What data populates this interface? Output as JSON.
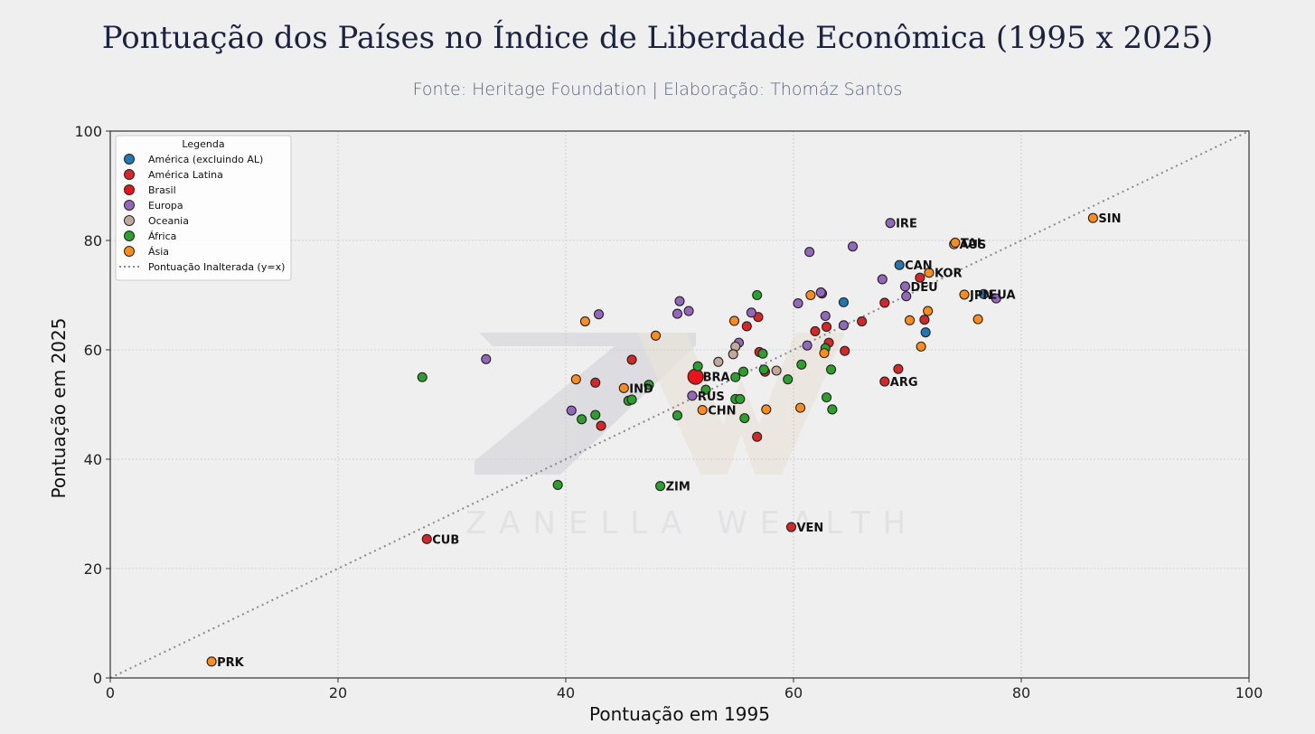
{
  "header": {
    "title": "Pontuação dos Países no Índice de Liberdade Econômica (1995 x 2025)",
    "subtitle": "Fonte: Heritage Foundation | Elaboração: Thomáz Santos"
  },
  "watermark": {
    "monogram": "ZW",
    "text": "ZANELLA WEALTH"
  },
  "chart_data": {
    "type": "scatter",
    "xlabel": "Pontuação em 1995",
    "ylabel": "Pontuação em 2025",
    "xlim": [
      0,
      100
    ],
    "ylim": [
      0,
      100
    ],
    "xticks": [
      0,
      20,
      40,
      60,
      80,
      100
    ],
    "yticks": [
      0,
      20,
      40,
      60,
      80,
      100
    ],
    "grid": true,
    "legend": {
      "title": "Legenda",
      "placement": "top-left",
      "line_label": "Pontuação Inalterada (y=x)"
    },
    "reference_line": {
      "type": "y=x",
      "color": "#888888",
      "style": "dotted"
    },
    "series": [
      {
        "name": "América (excluindo AL)",
        "color": "#1f77b4",
        "points": [
          {
            "x": 69.3,
            "y": 75.5,
            "label": "CAN"
          },
          {
            "x": 76.7,
            "y": 70.2,
            "label": "EUA"
          },
          {
            "x": 64.4,
            "y": 68.7
          },
          {
            "x": 71.6,
            "y": 63.2
          }
        ]
      },
      {
        "name": "América Latina",
        "color": "#d62728",
        "points": [
          {
            "x": 27.8,
            "y": 25.4,
            "label": "CUB"
          },
          {
            "x": 59.8,
            "y": 27.6,
            "label": "VEN"
          },
          {
            "x": 68.0,
            "y": 54.2,
            "label": "ARG"
          },
          {
            "x": 45.8,
            "y": 58.2
          },
          {
            "x": 42.6,
            "y": 54.0
          },
          {
            "x": 43.1,
            "y": 46.1
          },
          {
            "x": 56.8,
            "y": 44.1
          },
          {
            "x": 55.9,
            "y": 64.3
          },
          {
            "x": 56.9,
            "y": 66.0
          },
          {
            "x": 57.0,
            "y": 59.6
          },
          {
            "x": 61.9,
            "y": 63.4
          },
          {
            "x": 62.9,
            "y": 64.2
          },
          {
            "x": 63.1,
            "y": 61.3
          },
          {
            "x": 64.5,
            "y": 59.8
          },
          {
            "x": 66.0,
            "y": 65.2
          },
          {
            "x": 68.0,
            "y": 68.6
          },
          {
            "x": 69.2,
            "y": 56.5
          },
          {
            "x": 71.1,
            "y": 73.2
          },
          {
            "x": 71.5,
            "y": 65.5
          },
          {
            "x": 62.5,
            "y": 70.3
          },
          {
            "x": 57.5,
            "y": 56.0
          }
        ]
      },
      {
        "name": "Brasil",
        "color": "#e8141a",
        "points": [
          {
            "x": 51.4,
            "y": 55.1,
            "label": "BRA",
            "highlight": true
          }
        ]
      },
      {
        "name": "Europa",
        "color": "#9467bd",
        "points": [
          {
            "x": 68.5,
            "y": 83.2,
            "label": "IRE"
          },
          {
            "x": 69.8,
            "y": 71.6,
            "label": "DEU"
          },
          {
            "x": 51.1,
            "y": 51.6,
            "label": "RUS"
          },
          {
            "x": 33.0,
            "y": 58.3
          },
          {
            "x": 40.5,
            "y": 48.9
          },
          {
            "x": 42.9,
            "y": 66.5
          },
          {
            "x": 49.8,
            "y": 66.6
          },
          {
            "x": 50.0,
            "y": 68.9
          },
          {
            "x": 50.8,
            "y": 67.1
          },
          {
            "x": 55.2,
            "y": 61.3
          },
          {
            "x": 56.3,
            "y": 66.8
          },
          {
            "x": 61.2,
            "y": 60.8
          },
          {
            "x": 61.4,
            "y": 77.9
          },
          {
            "x": 62.4,
            "y": 70.5
          },
          {
            "x": 62.8,
            "y": 66.2
          },
          {
            "x": 64.4,
            "y": 64.5
          },
          {
            "x": 65.2,
            "y": 78.9
          },
          {
            "x": 67.8,
            "y": 72.9
          },
          {
            "x": 69.9,
            "y": 69.8
          },
          {
            "x": 60.4,
            "y": 68.5
          },
          {
            "x": 77.8,
            "y": 69.4
          }
        ]
      },
      {
        "name": "Oceania",
        "color": "#c4a99b",
        "points": [
          {
            "x": 74.1,
            "y": 79.3,
            "label": "AUS"
          },
          {
            "x": 53.4,
            "y": 57.8
          },
          {
            "x": 54.9,
            "y": 60.6
          },
          {
            "x": 54.7,
            "y": 59.2
          },
          {
            "x": 58.5,
            "y": 56.2
          }
        ]
      },
      {
        "name": "África",
        "color": "#2ca02c",
        "points": [
          {
            "x": 48.3,
            "y": 35.1,
            "label": "ZIM"
          },
          {
            "x": 27.4,
            "y": 55.0
          },
          {
            "x": 39.3,
            "y": 35.3
          },
          {
            "x": 41.4,
            "y": 47.3
          },
          {
            "x": 42.6,
            "y": 48.1
          },
          {
            "x": 45.5,
            "y": 50.7
          },
          {
            "x": 45.8,
            "y": 50.9
          },
          {
            "x": 47.3,
            "y": 53.6
          },
          {
            "x": 49.8,
            "y": 48.0
          },
          {
            "x": 51.6,
            "y": 57.0
          },
          {
            "x": 52.3,
            "y": 52.7
          },
          {
            "x": 54.9,
            "y": 55.0
          },
          {
            "x": 54.9,
            "y": 51.0
          },
          {
            "x": 55.3,
            "y": 51.0
          },
          {
            "x": 55.6,
            "y": 56.0
          },
          {
            "x": 55.7,
            "y": 47.5
          },
          {
            "x": 56.8,
            "y": 70.0
          },
          {
            "x": 57.3,
            "y": 59.3
          },
          {
            "x": 57.4,
            "y": 56.4
          },
          {
            "x": 59.5,
            "y": 54.6
          },
          {
            "x": 60.7,
            "y": 57.3
          },
          {
            "x": 62.8,
            "y": 60.3
          },
          {
            "x": 62.9,
            "y": 51.3
          },
          {
            "x": 63.3,
            "y": 56.4
          },
          {
            "x": 63.4,
            "y": 49.1
          }
        ]
      },
      {
        "name": "Ásia",
        "color": "#ff8c1a",
        "points": [
          {
            "x": 86.3,
            "y": 84.1,
            "label": "SIN"
          },
          {
            "x": 74.2,
            "y": 79.6,
            "label": "TAI"
          },
          {
            "x": 71.9,
            "y": 74.1,
            "label": "KOR"
          },
          {
            "x": 75.0,
            "y": 70.1,
            "label": "JPN"
          },
          {
            "x": 45.1,
            "y": 53.0,
            "label": "IND"
          },
          {
            "x": 52.0,
            "y": 49.0,
            "label": "CHN"
          },
          {
            "x": 8.9,
            "y": 3.0,
            "label": "PRK"
          },
          {
            "x": 40.9,
            "y": 54.6
          },
          {
            "x": 41.7,
            "y": 65.2
          },
          {
            "x": 47.9,
            "y": 62.6
          },
          {
            "x": 54.8,
            "y": 65.3
          },
          {
            "x": 57.6,
            "y": 49.1
          },
          {
            "x": 60.6,
            "y": 49.4
          },
          {
            "x": 61.5,
            "y": 70.0
          },
          {
            "x": 62.7,
            "y": 59.4
          },
          {
            "x": 70.2,
            "y": 65.4
          },
          {
            "x": 71.2,
            "y": 60.6
          },
          {
            "x": 71.8,
            "y": 67.1
          },
          {
            "x": 76.2,
            "y": 65.6
          }
        ]
      }
    ]
  }
}
